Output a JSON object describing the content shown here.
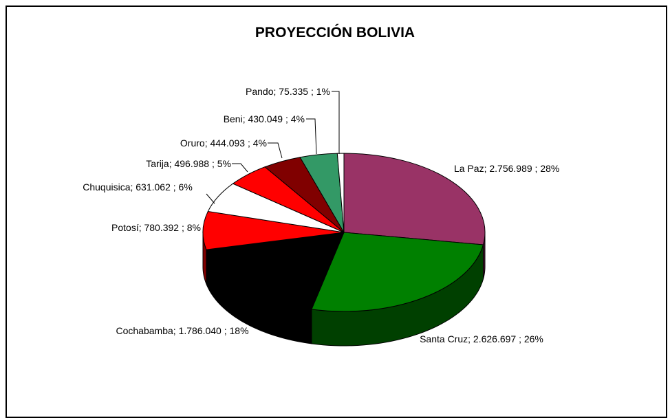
{
  "chart_data": {
    "type": "pie",
    "title": "PROYECCIÓN BOLIVIA",
    "values": [
      2756989,
      2626697,
      1786040,
      780392,
      631062,
      496988,
      444093,
      430049,
      75335
    ],
    "value_labels": [
      "La Paz;  2.756.989 ; 28%",
      "Santa Cruz;  2.626.697 ; 26%",
      "Cochabamba;  1.786.040 ; 18%",
      "Potosí;  780.392 ; 8%",
      "Chuquisica;  631.062 ; 6%",
      "Tarija;  496.988 ; 5%",
      "Oruro;  444.093 ; 4%",
      "Beni;  430.049 ; 4%",
      "Pando;  75.335 ; 1%"
    ],
    "colors": [
      "#993366",
      "#008000",
      "#000000",
      "#ff0000",
      "#ffffff",
      "#ff0000",
      "#800000",
      "#339966",
      "#ffffff"
    ]
  }
}
